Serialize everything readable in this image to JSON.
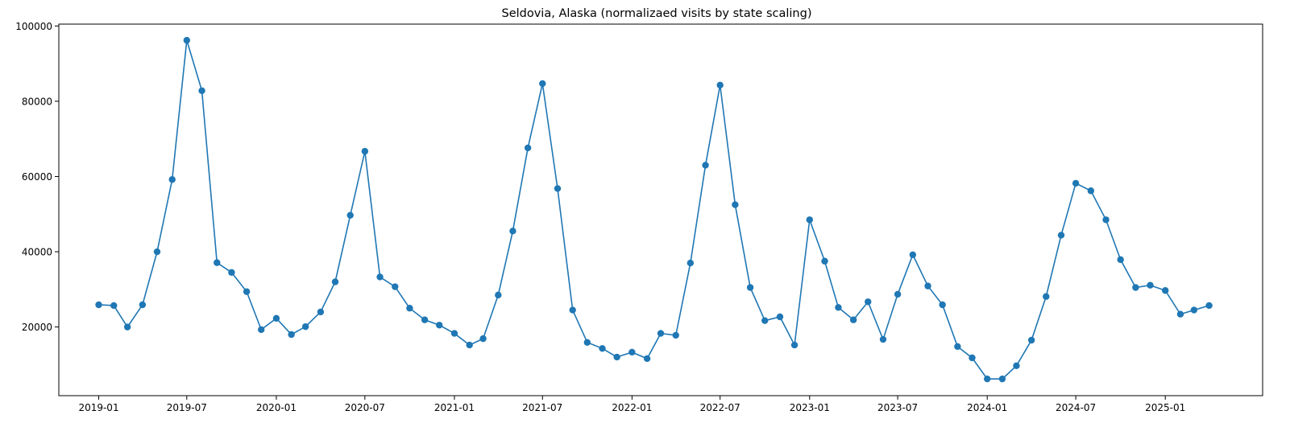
{
  "chart_data": {
    "type": "line",
    "title": "Seldovia, Alaska (normalizaed visits by state scaling)",
    "xlabel": "",
    "ylabel": "",
    "color": "#1f77b4",
    "markers": true,
    "grid": false,
    "legend": "none",
    "x_range": [
      "2018-10-11",
      "2025-07-20"
    ],
    "ylim": [
      1750,
      100500
    ],
    "y_ticks": [
      20000,
      40000,
      60000,
      80000,
      100000
    ],
    "y_tick_labels": [
      "20000",
      "40000",
      "60000",
      "80000",
      "100000"
    ],
    "x_ticks": [
      "2019-01-01",
      "2019-07-01",
      "2020-01-01",
      "2020-07-01",
      "2021-01-01",
      "2021-07-01",
      "2022-01-01",
      "2022-07-01",
      "2023-01-01",
      "2023-07-01",
      "2024-01-01",
      "2024-07-01",
      "2025-01-01"
    ],
    "x_tick_labels": [
      "2019-01",
      "2019-07",
      "2020-01",
      "2020-07",
      "2021-01",
      "2021-07",
      "2022-01",
      "2022-07",
      "2023-01",
      "2023-07",
      "2024-01",
      "2024-07",
      "2025-01"
    ],
    "x": [
      "2019-01-01",
      "2019-02-01",
      "2019-03-01",
      "2019-04-01",
      "2019-05-01",
      "2019-06-01",
      "2019-07-01",
      "2019-08-01",
      "2019-09-01",
      "2019-10-01",
      "2019-11-01",
      "2019-12-01",
      "2020-01-01",
      "2020-02-01",
      "2020-03-01",
      "2020-04-01",
      "2020-05-01",
      "2020-06-01",
      "2020-07-01",
      "2020-08-01",
      "2020-09-01",
      "2020-10-01",
      "2020-11-01",
      "2020-12-01",
      "2021-01-01",
      "2021-02-01",
      "2021-03-01",
      "2021-04-01",
      "2021-05-01",
      "2021-06-01",
      "2021-07-01",
      "2021-08-01",
      "2021-09-01",
      "2021-10-01",
      "2021-11-01",
      "2021-12-01",
      "2022-01-01",
      "2022-02-01",
      "2022-03-01",
      "2022-04-01",
      "2022-05-01",
      "2022-06-01",
      "2022-07-01",
      "2022-08-01",
      "2022-09-01",
      "2022-10-01",
      "2022-11-01",
      "2022-12-01",
      "2023-01-01",
      "2023-02-01",
      "2023-03-01",
      "2023-04-01",
      "2023-05-01",
      "2023-06-01",
      "2023-07-01",
      "2023-08-01",
      "2023-09-01",
      "2023-10-01",
      "2023-11-01",
      "2023-12-01",
      "2024-01-01",
      "2024-02-01",
      "2024-03-01",
      "2024-04-01",
      "2024-05-01",
      "2024-06-01",
      "2024-07-01",
      "2024-08-01",
      "2024-09-01",
      "2024-10-01",
      "2024-11-01",
      "2024-12-01",
      "2025-01-01",
      "2025-02-01",
      "2025-03-01",
      "2025-04-01"
    ],
    "y": [
      25900,
      25700,
      20000,
      25900,
      40000,
      59200,
      96200,
      82800,
      37100,
      34500,
      29400,
      19300,
      22300,
      18000,
      20100,
      24000,
      32000,
      49700,
      66700,
      33300,
      30700,
      25000,
      21900,
      20500,
      18300,
      15200,
      16900,
      28500,
      45500,
      67600,
      84700,
      56800,
      24500,
      15900,
      14300,
      12000,
      13300,
      11600,
      18300,
      17800,
      37000,
      63000,
      84300,
      52500,
      30500,
      21700,
      22700,
      15200,
      48500,
      37500,
      25200,
      21900,
      26700,
      16700,
      28700,
      39200,
      30900,
      25900,
      14800,
      11800,
      6200,
      6200,
      9700,
      16500,
      28100,
      44400,
      58200,
      56200,
      48500,
      37900,
      30500,
      31100,
      29700,
      23400,
      24500,
      25700
    ]
  }
}
